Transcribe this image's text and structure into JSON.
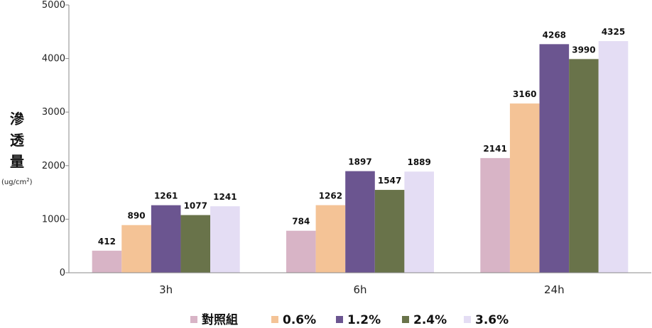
{
  "chart_data": {
    "type": "bar",
    "categories": [
      "3h",
      "6h",
      "24h"
    ],
    "series": [
      {
        "name": "對照組",
        "values": [
          412,
          784,
          2141
        ],
        "color": "#d8b4c6"
      },
      {
        "name": "0.6%",
        "values": [
          890,
          1262,
          3160
        ],
        "color": "#f4c396"
      },
      {
        "name": "1.2%",
        "values": [
          1261,
          1897,
          4268
        ],
        "color": "#6b5590"
      },
      {
        "name": "2.4%",
        "values": [
          1077,
          1547,
          3990
        ],
        "color": "#69734a"
      },
      {
        "name": "3.6%",
        "values": [
          1241,
          1889,
          4325
        ],
        "color": "#e4ddf4"
      }
    ],
    "ylabel_chars": [
      "滲",
      "透",
      "量"
    ],
    "ylabel_unit": "(ug/cm",
    "ylabel_unit_sup": "2",
    "ylabel_unit_close": ")",
    "ylim": [
      0,
      5000
    ],
    "yticks": [
      0,
      1000,
      2000,
      3000,
      4000,
      5000
    ],
    "legend_position": "bottom",
    "grid": false
  }
}
